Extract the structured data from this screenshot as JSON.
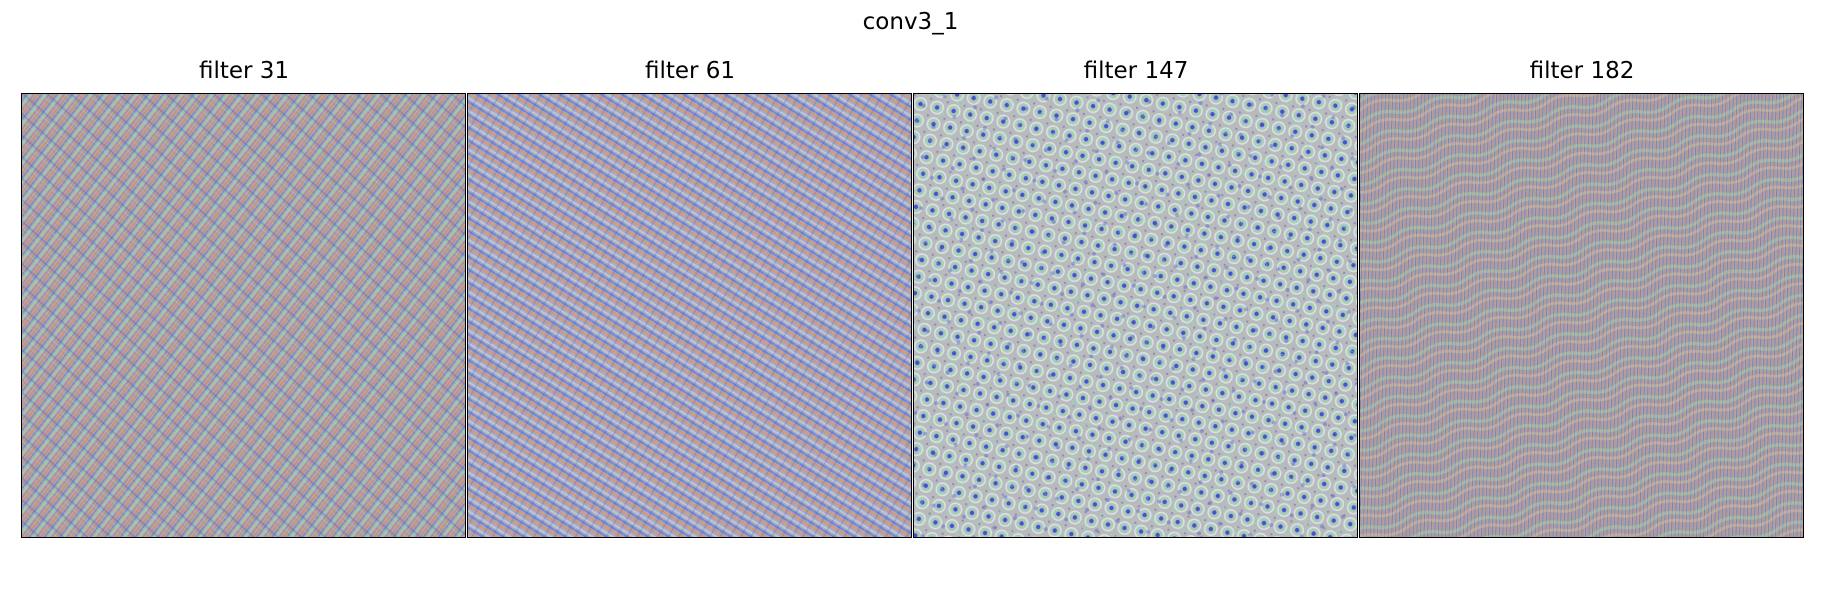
{
  "figure": {
    "title": "conv3_1"
  },
  "panels": [
    {
      "title": "filter 31",
      "pattern": "diagonal-crosshatch-texture",
      "colors": [
        "#a6a8b4",
        "#e07d4a",
        "#5a6fd0",
        "#9be0a8",
        "#c95a7a"
      ]
    },
    {
      "title": "filter 61",
      "pattern": "diagonal-stripe-texture",
      "colors": [
        "#9ca8c8",
        "#f08c4c",
        "#4d68d8",
        "#c8d0d8",
        "#a8b8d8"
      ]
    },
    {
      "title": "filter 147",
      "pattern": "dot-cell-texture",
      "colors": [
        "#b8bcbc",
        "#2f3fd6",
        "#7ff0a8",
        "#e6e6f0",
        "#6a5ab8"
      ]
    },
    {
      "title": "filter 182",
      "pattern": "wavy-stripe-texture",
      "colors": [
        "#a9a8ac",
        "#e07060",
        "#4a58b8",
        "#9ed8a8",
        "#d8c898"
      ]
    }
  ]
}
